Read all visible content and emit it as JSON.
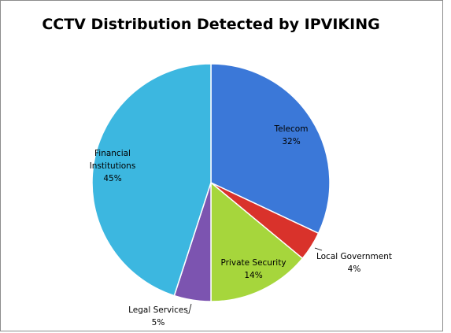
{
  "chart_data": {
    "type": "pie",
    "title": "CCTV Distribution Detected by IPVIKING",
    "slices": [
      {
        "label": "Telecom",
        "value": 32,
        "value_label": "32%",
        "color": "#3b78d8"
      },
      {
        "label": "Local Government",
        "value": 4,
        "value_label": "4%",
        "color": "#d9322b"
      },
      {
        "label": "Private Security",
        "value": 14,
        "value_label": "14%",
        "color": "#a6d63c"
      },
      {
        "label": "Legal Services",
        "value": 5,
        "value_label": "5%",
        "color": "#7c54b0"
      },
      {
        "label": "Financial Institutions",
        "value": 45,
        "value_label": "45%",
        "color": "#3cb7e0"
      }
    ],
    "legend": "none",
    "data_labels": "category and percentage"
  }
}
